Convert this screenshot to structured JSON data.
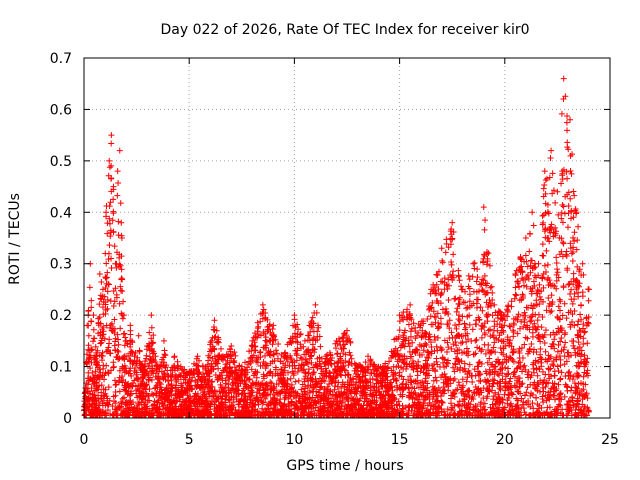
{
  "chart_data": {
    "type": "scatter",
    "title": "Day 022 of 2026, Rate Of TEC Index for receiver kir0",
    "xlabel": "GPS time / hours",
    "ylabel": "ROTI / TECUs",
    "xlim": [
      0,
      25
    ],
    "ylim": [
      0,
      0.7
    ],
    "xticks": [
      0,
      5,
      10,
      15,
      20,
      25
    ],
    "xtick_labels": [
      "0",
      "5",
      "10",
      "15",
      "20",
      "25"
    ],
    "yticks": [
      0,
      0.1,
      0.2,
      0.3,
      0.4,
      0.5,
      0.6,
      0.7
    ],
    "ytick_labels": [
      "0",
      "0.1",
      "0.2",
      "0.3",
      "0.4",
      "0.5",
      "0.6",
      "0.7"
    ],
    "grid": true,
    "marker": "+",
    "marker_color": "#ff0000",
    "series": [
      {
        "name": "kir0",
        "x": [
          0.05,
          0.15,
          0.3,
          0.45,
          0.6,
          0.75,
          0.9,
          1.05,
          1.2,
          1.3,
          1.4,
          1.5,
          1.6,
          1.7,
          1.8,
          1.9,
          2.0,
          2.2,
          2.4,
          2.6,
          2.8,
          3.0,
          3.2,
          3.4,
          3.6,
          3.8,
          4.0,
          4.3,
          4.6,
          5.0,
          5.4,
          5.8,
          6.2,
          6.6,
          7.0,
          7.5,
          8.0,
          8.5,
          9.0,
          9.5,
          10.0,
          10.5,
          11.0,
          11.5,
          12.0,
          12.5,
          13.0,
          13.5,
          14.0,
          14.5,
          15.0,
          15.5,
          16.0,
          16.5,
          17.0,
          17.5,
          18.0,
          18.5,
          19.0,
          19.5,
          20.0,
          20.5,
          21.0,
          21.3,
          21.6,
          21.9,
          22.2,
          22.5,
          22.8,
          23.1,
          23.4,
          23.7,
          24.0
        ],
        "y": [
          0.05,
          0.18,
          0.3,
          0.2,
          0.12,
          0.28,
          0.25,
          0.4,
          0.5,
          0.55,
          0.45,
          0.3,
          0.48,
          0.52,
          0.35,
          0.2,
          0.15,
          0.18,
          0.12,
          0.16,
          0.1,
          0.14,
          0.2,
          0.12,
          0.1,
          0.15,
          0.08,
          0.12,
          0.1,
          0.09,
          0.12,
          0.1,
          0.19,
          0.12,
          0.14,
          0.1,
          0.15,
          0.22,
          0.18,
          0.12,
          0.2,
          0.15,
          0.22,
          0.12,
          0.15,
          0.17,
          0.1,
          0.12,
          0.1,
          0.11,
          0.2,
          0.22,
          0.18,
          0.25,
          0.33,
          0.38,
          0.25,
          0.3,
          0.41,
          0.22,
          0.2,
          0.28,
          0.35,
          0.4,
          0.3,
          0.48,
          0.52,
          0.44,
          0.66,
          0.58,
          0.4,
          0.3,
          0.25
        ]
      }
    ]
  }
}
